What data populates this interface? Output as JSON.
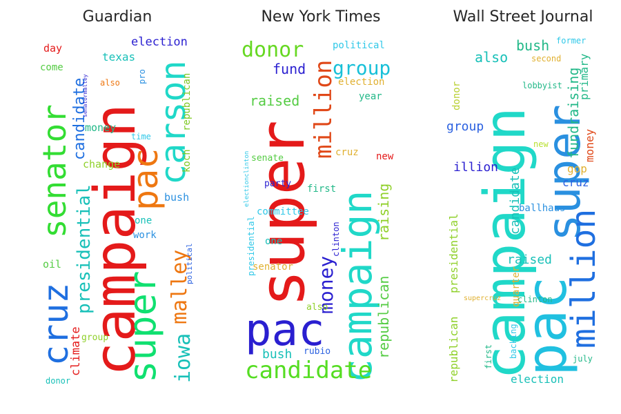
{
  "chart_data": [
    {
      "type": "wordcloud",
      "title": "Guardian",
      "words": [
        {
          "text": "campaign",
          "color": "#e41a1a",
          "size": 82,
          "rot": true
        },
        {
          "text": "senator",
          "color": "#33dd33",
          "size": 46,
          "rot": true
        },
        {
          "text": "super",
          "color": "#10e070",
          "size": 54,
          "rot": true
        },
        {
          "text": "pac",
          "color": "#ee7711",
          "size": 50,
          "rot": true
        },
        {
          "text": "carson",
          "color": "#20d8c8",
          "size": 50,
          "rot": true
        },
        {
          "text": "cruz",
          "color": "#1f6fe0",
          "size": 50,
          "rot": true
        },
        {
          "text": "presidential",
          "color": "#18c0b8",
          "size": 26,
          "rot": true
        },
        {
          "text": "iowa",
          "color": "#18c0b8",
          "size": 30,
          "rot": true
        },
        {
          "text": "malley",
          "color": "#ee7711",
          "size": 30,
          "rot": true
        },
        {
          "text": "candidate",
          "color": "#1f6fe0",
          "size": 22,
          "rot": true
        },
        {
          "text": "climate",
          "color": "#e41a1a",
          "size": 17,
          "rot": true
        },
        {
          "text": "election",
          "color": "#2a1fd0",
          "size": 17,
          "rot": false
        },
        {
          "text": "texas",
          "color": "#18c0b8",
          "size": 16,
          "rot": false
        },
        {
          "text": "money",
          "color": "#22b888",
          "size": 15,
          "rot": false
        },
        {
          "text": "change",
          "color": "#8fd02a",
          "size": 15,
          "rot": false
        },
        {
          "text": "bush",
          "color": "#2a90e0",
          "size": 15,
          "rot": false
        },
        {
          "text": "koch",
          "color": "#7dc820",
          "size": 14,
          "rot": true
        },
        {
          "text": "republican",
          "color": "#7dc820",
          "size": 14,
          "rot": true
        },
        {
          "text": "day",
          "color": "#e41a1a",
          "size": 15,
          "rot": false
        },
        {
          "text": "come",
          "color": "#55cc44",
          "size": 14,
          "rot": false
        },
        {
          "text": "also",
          "color": "#ee7711",
          "size": 12,
          "rot": false
        },
        {
          "text": "pro",
          "color": "#2a90e0",
          "size": 12,
          "rot": true
        },
        {
          "text": "senatormalley",
          "color": "#2a1fd0",
          "size": 8,
          "rot": true
        },
        {
          "text": "time",
          "color": "#30c8e8",
          "size": 12,
          "rot": false
        },
        {
          "text": "one",
          "color": "#18c0b8",
          "size": 14,
          "rot": false
        },
        {
          "text": "work",
          "color": "#2a90e0",
          "size": 14,
          "rot": false
        },
        {
          "text": "political",
          "color": "#2a60e0",
          "size": 11,
          "rot": true
        },
        {
          "text": "oil",
          "color": "#55cc44",
          "size": 15,
          "rot": false
        },
        {
          "text": "group",
          "color": "#8fd02a",
          "size": 13,
          "rot": false
        },
        {
          "text": "donor",
          "color": "#18c0b8",
          "size": 12,
          "rot": false
        }
      ]
    },
    {
      "type": "wordcloud",
      "title": "New York Times",
      "words": [
        {
          "text": "super",
          "color": "#e41a1a",
          "size": 90,
          "rot": true
        },
        {
          "text": "pac",
          "color": "#2a1fd0",
          "size": 64,
          "rot": false
        },
        {
          "text": "campaign",
          "color": "#20d8c8",
          "size": 58,
          "rot": true
        },
        {
          "text": "candidate",
          "color": "#55dd22",
          "size": 34,
          "rot": false
        },
        {
          "text": "donor",
          "color": "#66d822",
          "size": 30,
          "rot": false
        },
        {
          "text": "million",
          "color": "#e04818",
          "size": 34,
          "rot": true
        },
        {
          "text": "group",
          "color": "#18c0d8",
          "size": 28,
          "rot": false
        },
        {
          "text": "money",
          "color": "#2a1fd0",
          "size": 28,
          "rot": true
        },
        {
          "text": "republican",
          "color": "#55cc44",
          "size": 20,
          "rot": true
        },
        {
          "text": "raising",
          "color": "#8fd02a",
          "size": 20,
          "rot": true
        },
        {
          "text": "fund",
          "color": "#2a1fd0",
          "size": 20,
          "rot": false
        },
        {
          "text": "raised",
          "color": "#55cc44",
          "size": 20,
          "rot": false
        },
        {
          "text": "bush",
          "color": "#18c0b8",
          "size": 18,
          "rot": false
        },
        {
          "text": "political",
          "color": "#30c8e8",
          "size": 14,
          "rot": false
        },
        {
          "text": "election",
          "color": "#e0b030",
          "size": 14,
          "rot": false
        },
        {
          "text": "year",
          "color": "#22b888",
          "size": 14,
          "rot": false
        },
        {
          "text": "cruz",
          "color": "#e0b030",
          "size": 14,
          "rot": false
        },
        {
          "text": "new",
          "color": "#e41a1a",
          "size": 14,
          "rot": false
        },
        {
          "text": "senate",
          "color": "#55cc44",
          "size": 13,
          "rot": false
        },
        {
          "text": "party",
          "color": "#2a1fd0",
          "size": 13,
          "rot": false
        },
        {
          "text": "first",
          "color": "#22b888",
          "size": 14,
          "rot": false
        },
        {
          "text": "committee",
          "color": "#30c8e8",
          "size": 14,
          "rot": false
        },
        {
          "text": "one",
          "color": "#18c0b8",
          "size": 14,
          "rot": false
        },
        {
          "text": "senator",
          "color": "#e0b030",
          "size": 14,
          "rot": false
        },
        {
          "text": "also",
          "color": "#8fd02a",
          "size": 13,
          "rot": false
        },
        {
          "text": "rubio",
          "color": "#2a60e0",
          "size": 13,
          "rot": false
        },
        {
          "text": "clinton",
          "color": "#2a1fd0",
          "size": 12,
          "rot": true
        },
        {
          "text": "presidential",
          "color": "#30c8e8",
          "size": 12,
          "rot": true
        },
        {
          "text": "electionclinton",
          "color": "#30c8e8",
          "size": 9,
          "rot": true
        }
      ]
    },
    {
      "type": "wordcloud",
      "title": "Wall Street Journal",
      "words": [
        {
          "text": "campaign",
          "color": "#20d8c8",
          "size": 82,
          "rot": true
        },
        {
          "text": "pac",
          "color": "#20c0e0",
          "size": 80,
          "rot": true
        },
        {
          "text": "super",
          "color": "#2a90e0",
          "size": 66,
          "rot": true
        },
        {
          "text": "million",
          "color": "#1f6fe0",
          "size": 48,
          "rot": true
        },
        {
          "text": "candidate",
          "color": "#18c0b8",
          "size": 18,
          "rot": true
        },
        {
          "text": "fundraising",
          "color": "#22b888",
          "size": 20,
          "rot": true
        },
        {
          "text": "bush",
          "color": "#22b888",
          "size": 20,
          "rot": false
        },
        {
          "text": "also",
          "color": "#18c0b8",
          "size": 20,
          "rot": false
        },
        {
          "text": "group",
          "color": "#2a60e0",
          "size": 18,
          "rot": false
        },
        {
          "text": "illion",
          "color": "#2a1fd0",
          "size": 18,
          "rot": false
        },
        {
          "text": "raised",
          "color": "#18c0b8",
          "size": 18,
          "rot": false
        },
        {
          "text": "election",
          "color": "#18c0b8",
          "size": 16,
          "rot": false
        },
        {
          "text": "republican",
          "color": "#8fd02a",
          "size": 16,
          "rot": true
        },
        {
          "text": "presidential",
          "color": "#8fd02a",
          "size": 16,
          "rot": true
        },
        {
          "text": "primary",
          "color": "#22b888",
          "size": 16,
          "rot": true
        },
        {
          "text": "money",
          "color": "#e04818",
          "size": 16,
          "rot": true
        },
        {
          "text": "gop",
          "color": "#e0b030",
          "size": 16,
          "rot": false
        },
        {
          "text": "cruz",
          "color": "#2a60e0",
          "size": 16,
          "rot": false
        },
        {
          "text": "donor",
          "color": "#b8d030",
          "size": 14,
          "rot": true
        },
        {
          "text": "ballhaus",
          "color": "#2a90e0",
          "size": 14,
          "rot": false
        },
        {
          "text": "quarter",
          "color": "#e0b030",
          "size": 14,
          "rot": true
        },
        {
          "text": "clinton",
          "color": "#22b888",
          "size": 12,
          "rot": false
        },
        {
          "text": "backing",
          "color": "#30c8e8",
          "size": 12,
          "rot": true
        },
        {
          "text": "first",
          "color": "#22b888",
          "size": 12,
          "rot": true
        },
        {
          "text": "july",
          "color": "#22b888",
          "size": 12,
          "rot": false
        },
        {
          "text": "former",
          "color": "#30c8e8",
          "size": 12,
          "rot": false
        },
        {
          "text": "second",
          "color": "#e0b030",
          "size": 12,
          "rot": false
        },
        {
          "text": "lobbyist",
          "color": "#22b888",
          "size": 12,
          "rot": false
        },
        {
          "text": "new",
          "color": "#b8e030",
          "size": 12,
          "rot": false
        },
        {
          "text": "supercruz",
          "color": "#e0b030",
          "size": 10,
          "rot": false
        }
      ]
    }
  ]
}
